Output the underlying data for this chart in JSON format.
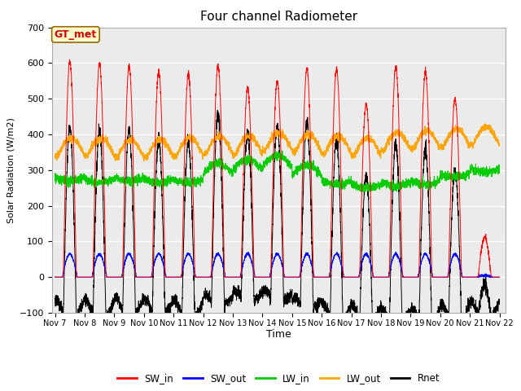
{
  "title": "Four channel Radiometer",
  "xlabel": "Time",
  "ylabel": "Solar Radiation (W/m2)",
  "ylim": [
    -100,
    700
  ],
  "background_color": "#ebebeb",
  "annotation_text": "GT_met",
  "annotation_bg": "#ffffcc",
  "annotation_border": "#996600",
  "annotation_text_color": "#cc0000",
  "x_tick_labels": [
    "Nov 7",
    "Nov 8",
    "Nov 9",
    "Nov 10",
    "Nov 11",
    "Nov 12",
    "Nov 13",
    "Nov 14",
    "Nov 15",
    "Nov 16",
    "Nov 17",
    "Nov 18",
    "Nov 19",
    "Nov 20",
    "Nov 21",
    "Nov 22"
  ],
  "legend_labels": [
    "SW_in",
    "SW_out",
    "LW_in",
    "LW_out",
    "Rnet"
  ],
  "legend_colors": [
    "#ff0000",
    "#0000ff",
    "#00cc00",
    "#ffa500",
    "#000000"
  ],
  "line_colors": {
    "SW_in": "#ff0000",
    "SW_out": "#0000ff",
    "LW_in": "#00cc00",
    "LW_out": "#ffa500",
    "Rnet": "#000000"
  },
  "n_days": 15,
  "points_per_day": 288
}
